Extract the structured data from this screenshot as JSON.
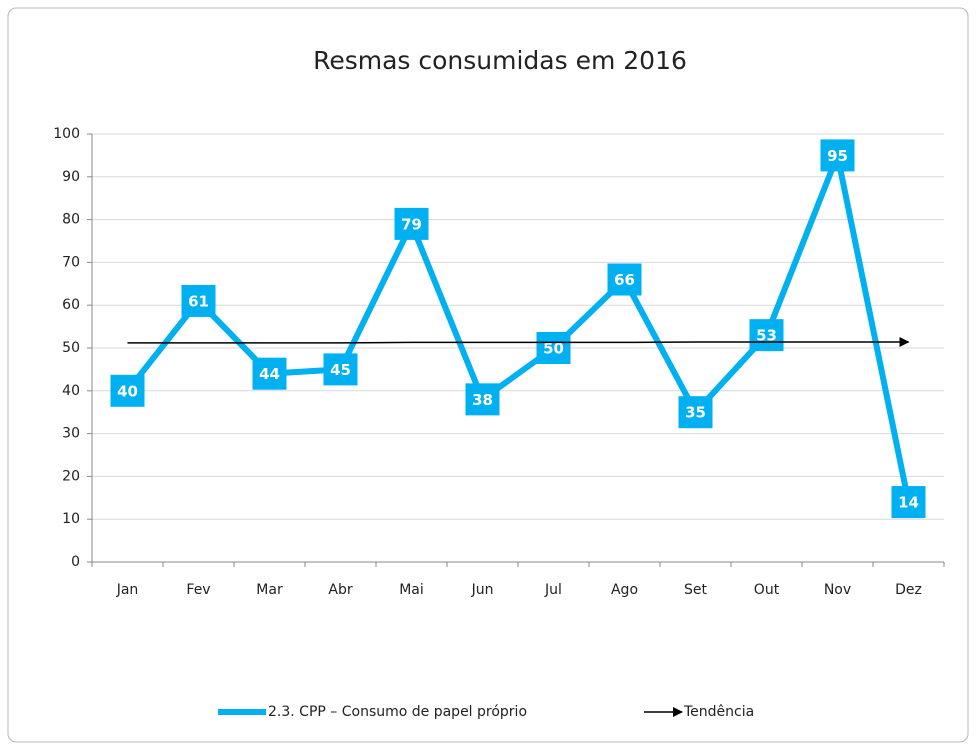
{
  "chart_data": {
    "type": "line",
    "title": "Resmas consumidas em 2016",
    "categories": [
      "Jan",
      "Fev",
      "Mar",
      "Abr",
      "Mai",
      "Jun",
      "Jul",
      "Ago",
      "Set",
      "Out",
      "Nov",
      "Dez"
    ],
    "series": [
      {
        "name": "2.3. CPP – Consumo de papel próprio",
        "color": "#00b0f0",
        "values": [
          40,
          61,
          44,
          45,
          79,
          38,
          50,
          66,
          35,
          53,
          95,
          14
        ],
        "data_labels": true
      },
      {
        "name": "Tendência",
        "color": "#000000",
        "values": [
          51.2,
          51.2,
          51.2,
          51.2,
          51.3,
          51.3,
          51.3,
          51.3,
          51.4,
          51.4,
          51.4,
          51.4
        ],
        "arrow": true
      }
    ],
    "ylim": [
      0,
      100
    ],
    "yticks": [
      0,
      10,
      20,
      30,
      40,
      50,
      60,
      70,
      80,
      90,
      100
    ],
    "grid": true,
    "legend": "bottom"
  }
}
